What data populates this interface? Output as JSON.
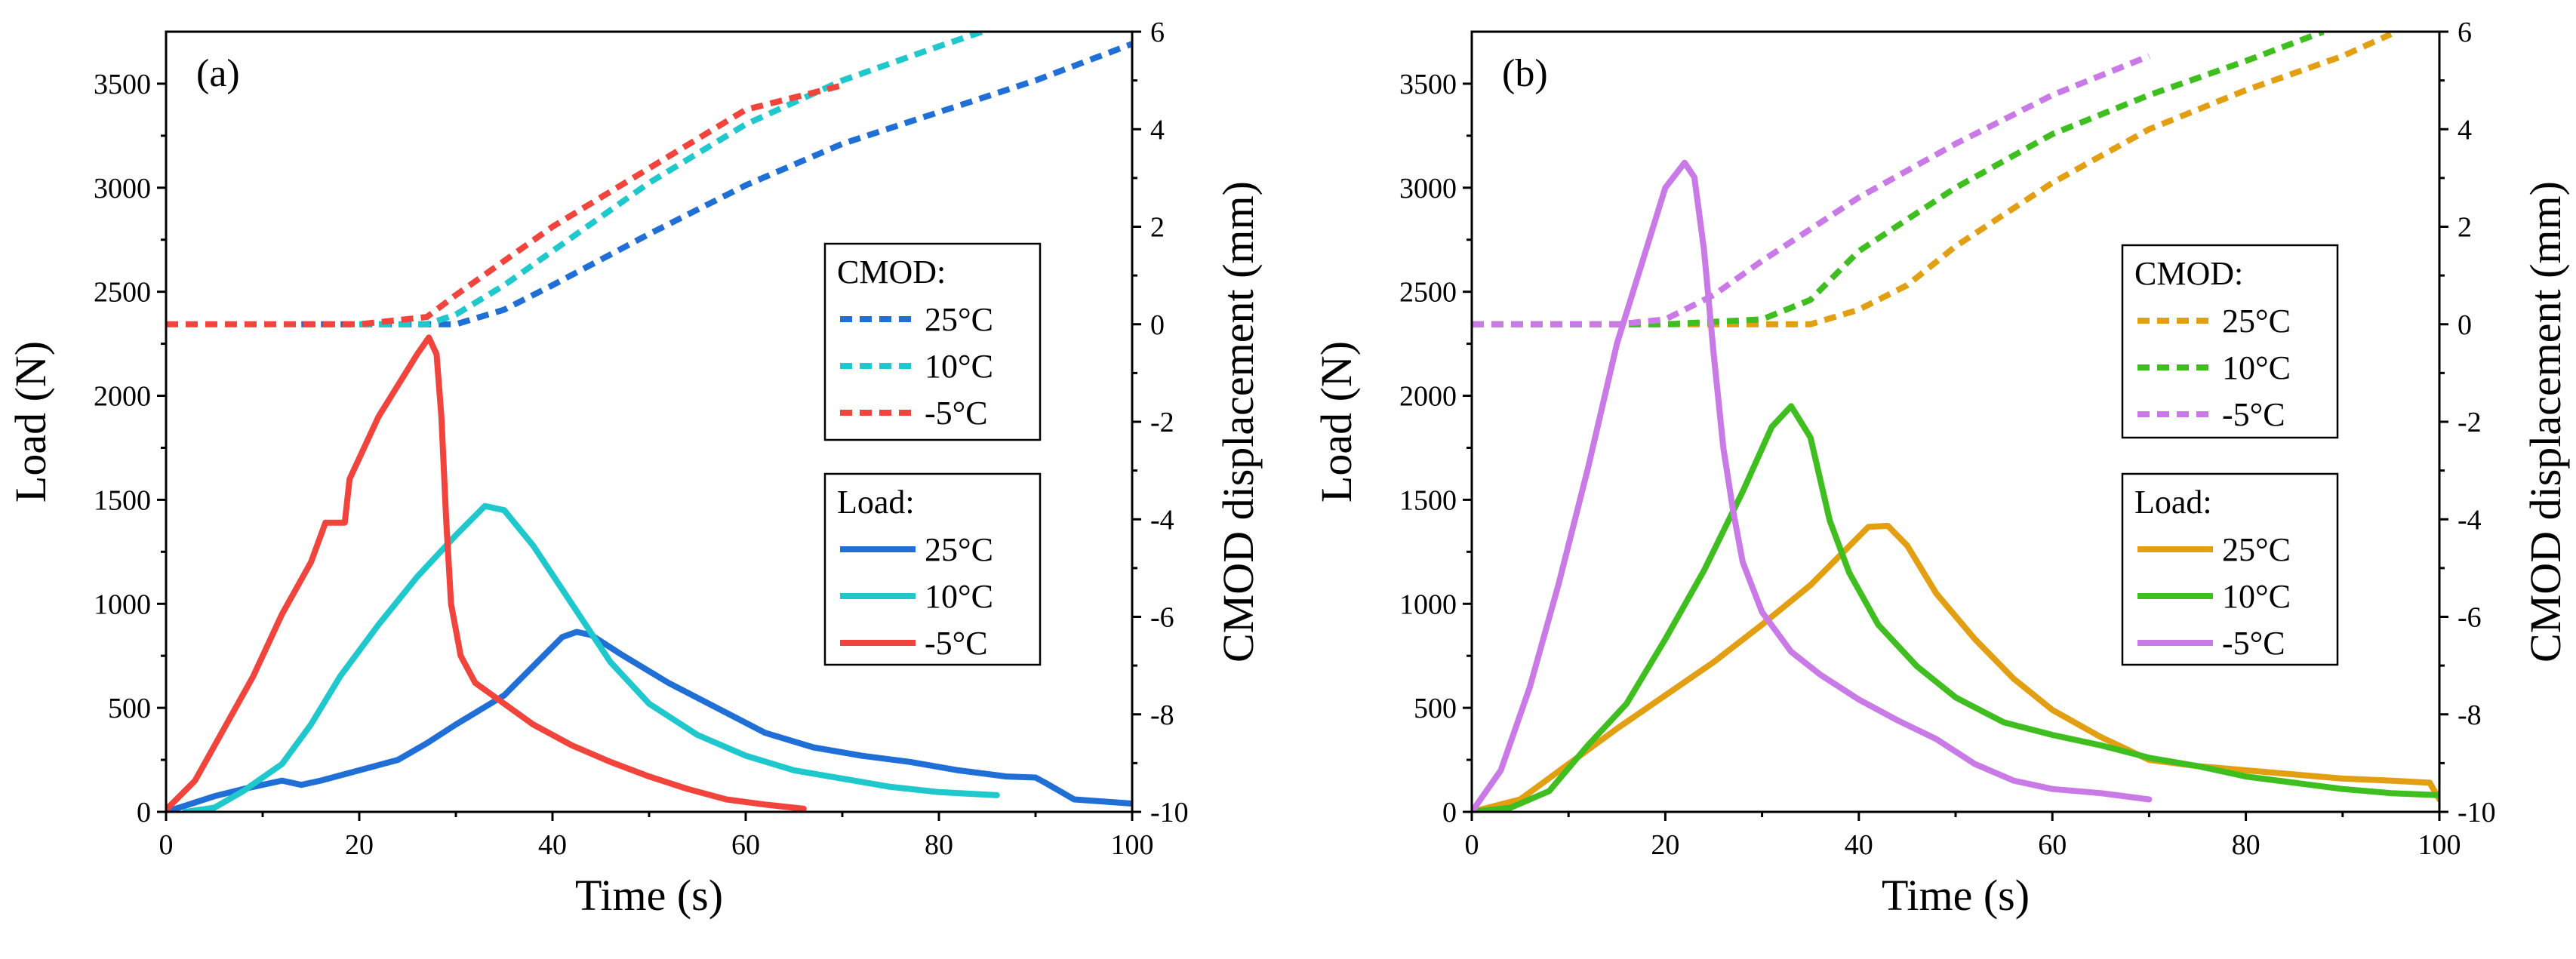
{
  "chart_data": [
    {
      "type": "line",
      "panel_label": "(a)",
      "xlabel": "Time (s)",
      "ylabel_left": "Load (N)",
      "ylabel_right": "CMOD displacement (mm)",
      "xlim": [
        0,
        100
      ],
      "ylim_left": [
        0,
        3750
      ],
      "ylim_right": [
        -10,
        6
      ],
      "x_ticks": [
        "0",
        "20",
        "40",
        "60",
        "80",
        "100"
      ],
      "y_left_ticks": [
        "0",
        "500",
        "1000",
        "1500",
        "2000",
        "2500",
        "3000",
        "3500"
      ],
      "y_right_ticks": [
        "6",
        "4",
        "2",
        "0",
        "-2",
        "-4",
        "-6",
        "-8",
        "-10"
      ],
      "legend_cmod": {
        "title": "CMOD:",
        "entries": [
          "25°C",
          "10°C",
          "-5°C"
        ]
      },
      "legend_load": {
        "title": "Load:",
        "entries": [
          "25°C",
          "10°C",
          "-5°C"
        ]
      },
      "series": [
        {
          "name": "CMOD 25°C",
          "axis": "right",
          "style": "dashed",
          "color": "#1f6fd6",
          "points": [
            [
              14,
              0
            ],
            [
              20,
              0
            ],
            [
              30,
              0
            ],
            [
              35,
              0.3
            ],
            [
              40,
              0.8
            ],
            [
              50,
              1.85
            ],
            [
              60,
              2.85
            ],
            [
              70,
              3.7
            ],
            [
              80,
              4.35
            ],
            [
              90,
              5.0
            ],
            [
              100,
              5.75
            ]
          ]
        },
        {
          "name": "CMOD 10°C",
          "axis": "right",
          "style": "dashed",
          "color": "#1ec8cc",
          "points": [
            [
              20,
              0
            ],
            [
              27,
              0
            ],
            [
              30,
              0.2
            ],
            [
              35,
              0.8
            ],
            [
              40,
              1.5
            ],
            [
              50,
              2.9
            ],
            [
              60,
              4.1
            ],
            [
              70,
              5.0
            ],
            [
              80,
              5.7
            ],
            [
              86,
              6.1
            ]
          ]
        },
        {
          "name": "CMOD -5°C",
          "axis": "right",
          "style": "dashed",
          "color": "#f0443c",
          "points": [
            [
              0,
              0
            ],
            [
              10,
              0
            ],
            [
              20,
              0
            ],
            [
              27,
              0.15
            ],
            [
              30,
              0.6
            ],
            [
              40,
              2.0
            ],
            [
              50,
              3.2
            ],
            [
              60,
              4.4
            ],
            [
              70,
              4.9
            ]
          ]
        },
        {
          "name": "Load 25°C",
          "axis": "left",
          "style": "solid",
          "color": "#1f6fd6",
          "points": [
            [
              0,
              0
            ],
            [
              5,
              75
            ],
            [
              8,
              110
            ],
            [
              12,
              150
            ],
            [
              14,
              130
            ],
            [
              16,
              150
            ],
            [
              20,
              200
            ],
            [
              24,
              250
            ],
            [
              27,
              330
            ],
            [
              30,
              420
            ],
            [
              35,
              560
            ],
            [
              38,
              700
            ],
            [
              41,
              840
            ],
            [
              42.5,
              865
            ],
            [
              44,
              850
            ],
            [
              47,
              760
            ],
            [
              52,
              620
            ],
            [
              57,
              500
            ],
            [
              62,
              380
            ],
            [
              67,
              310
            ],
            [
              72,
              270
            ],
            [
              77,
              240
            ],
            [
              82,
              200
            ],
            [
              87,
              170
            ],
            [
              90,
              165
            ],
            [
              91,
              140
            ],
            [
              94,
              60
            ],
            [
              100,
              40
            ]
          ]
        },
        {
          "name": "Load 10°C",
          "axis": "left",
          "style": "solid",
          "color": "#1ec8cc",
          "points": [
            [
              2,
              0
            ],
            [
              5,
              20
            ],
            [
              8,
              100
            ],
            [
              12,
              230
            ],
            [
              15,
              420
            ],
            [
              18,
              650
            ],
            [
              22,
              900
            ],
            [
              26,
              1130
            ],
            [
              30,
              1330
            ],
            [
              33,
              1470
            ],
            [
              35,
              1450
            ],
            [
              38,
              1280
            ],
            [
              42,
              1000
            ],
            [
              46,
              720
            ],
            [
              50,
              520
            ],
            [
              55,
              370
            ],
            [
              60,
              270
            ],
            [
              65,
              200
            ],
            [
              70,
              160
            ],
            [
              75,
              120
            ],
            [
              80,
              95
            ],
            [
              86,
              80
            ]
          ]
        },
        {
          "name": "Load -5°C",
          "axis": "left",
          "style": "solid",
          "color": "#f0443c",
          "points": [
            [
              0,
              10
            ],
            [
              3,
              150
            ],
            [
              6,
              400
            ],
            [
              9,
              650
            ],
            [
              12,
              950
            ],
            [
              15,
              1200
            ],
            [
              16.5,
              1390
            ],
            [
              18.5,
              1390
            ],
            [
              19,
              1600
            ],
            [
              20,
              1700
            ],
            [
              22,
              1900
            ],
            [
              24,
              2050
            ],
            [
              26,
              2200
            ],
            [
              27.2,
              2280
            ],
            [
              28,
              2200
            ],
            [
              28.5,
              1900
            ],
            [
              29,
              1400
            ],
            [
              29.5,
              1000
            ],
            [
              30.5,
              750
            ],
            [
              32,
              620
            ],
            [
              35,
              520
            ],
            [
              38,
              420
            ],
            [
              42,
              320
            ],
            [
              46,
              240
            ],
            [
              50,
              170
            ],
            [
              54,
              110
            ],
            [
              58,
              60
            ],
            [
              62,
              35
            ],
            [
              66,
              15
            ]
          ]
        }
      ]
    },
    {
      "type": "line",
      "panel_label": "(b)",
      "xlabel": "Time (s)",
      "ylabel_left": "Load (N)",
      "ylabel_right": "CMOD displacement (mm)",
      "xlim": [
        0,
        100
      ],
      "ylim_left": [
        0,
        3750
      ],
      "ylim_right": [
        -10,
        6
      ],
      "x_ticks": [
        "0",
        "20",
        "40",
        "60",
        "80",
        "100"
      ],
      "y_left_ticks": [
        "0",
        "500",
        "1000",
        "1500",
        "2000",
        "2500",
        "3000",
        "3500"
      ],
      "y_right_ticks": [
        "6",
        "4",
        "2",
        "0",
        "-2",
        "-4",
        "-6",
        "-8",
        "-10"
      ],
      "legend_cmod": {
        "title": "CMOD:",
        "entries": [
          "25°C",
          "10°C",
          "-5°C"
        ]
      },
      "legend_load": {
        "title": "Load:",
        "entries": [
          "25°C",
          "10°C",
          "-5°C"
        ]
      },
      "series": [
        {
          "name": "CMOD 25°C",
          "axis": "right",
          "style": "dashed",
          "color": "#e39f12",
          "points": [
            [
              0,
              0
            ],
            [
              20,
              0
            ],
            [
              35,
              0
            ],
            [
              40,
              0.3
            ],
            [
              45,
              0.8
            ],
            [
              50,
              1.6
            ],
            [
              60,
              2.9
            ],
            [
              70,
              4.0
            ],
            [
              80,
              4.8
            ],
            [
              90,
              5.5
            ],
            [
              95,
              5.95
            ]
          ]
        },
        {
          "name": "CMOD 10°C",
          "axis": "right",
          "style": "dashed",
          "color": "#3fbf1f",
          "points": [
            [
              0,
              0
            ],
            [
              20,
              0
            ],
            [
              30,
              0.1
            ],
            [
              35,
              0.5
            ],
            [
              40,
              1.5
            ],
            [
              50,
              2.8
            ],
            [
              60,
              3.9
            ],
            [
              70,
              4.7
            ],
            [
              80,
              5.4
            ],
            [
              88,
              6.0
            ]
          ]
        },
        {
          "name": "CMOD -5°C",
          "axis": "right",
          "style": "dashed",
          "color": "#c97ae6",
          "points": [
            [
              0,
              0
            ],
            [
              15,
              0
            ],
            [
              20,
              0.1
            ],
            [
              25,
              0.6
            ],
            [
              30,
              1.3
            ],
            [
              40,
              2.6
            ],
            [
              50,
              3.7
            ],
            [
              60,
              4.7
            ],
            [
              70,
              5.5
            ]
          ]
        },
        {
          "name": "Load 25°C",
          "axis": "left",
          "style": "solid",
          "color": "#e39f12",
          "points": [
            [
              0,
              0
            ],
            [
              5,
              60
            ],
            [
              10,
              230
            ],
            [
              15,
              400
            ],
            [
              20,
              560
            ],
            [
              25,
              720
            ],
            [
              30,
              900
            ],
            [
              35,
              1090
            ],
            [
              38,
              1230
            ],
            [
              41,
              1370
            ],
            [
              43,
              1375
            ],
            [
              45,
              1280
            ],
            [
              48,
              1050
            ],
            [
              52,
              830
            ],
            [
              56,
              640
            ],
            [
              60,
              490
            ],
            [
              65,
              360
            ],
            [
              70,
              250
            ],
            [
              75,
              220
            ],
            [
              80,
              200
            ],
            [
              85,
              180
            ],
            [
              90,
              160
            ],
            [
              95,
              150
            ],
            [
              99,
              140
            ],
            [
              100,
              60
            ]
          ]
        },
        {
          "name": "Load 10°C",
          "axis": "left",
          "style": "solid",
          "color": "#3fbf1f",
          "points": [
            [
              0,
              0
            ],
            [
              4,
              20
            ],
            [
              8,
              100
            ],
            [
              12,
              320
            ],
            [
              16,
              520
            ],
            [
              20,
              830
            ],
            [
              24,
              1160
            ],
            [
              28,
              1540
            ],
            [
              31,
              1850
            ],
            [
              33,
              1950
            ],
            [
              35,
              1800
            ],
            [
              37,
              1400
            ],
            [
              39,
              1150
            ],
            [
              42,
              900
            ],
            [
              46,
              700
            ],
            [
              50,
              550
            ],
            [
              55,
              430
            ],
            [
              60,
              370
            ],
            [
              65,
              320
            ],
            [
              70,
              260
            ],
            [
              75,
              220
            ],
            [
              80,
              170
            ],
            [
              85,
              140
            ],
            [
              90,
              110
            ],
            [
              95,
              90
            ],
            [
              100,
              80
            ]
          ]
        },
        {
          "name": "Load -5°C",
          "axis": "left",
          "style": "solid",
          "color": "#c97ae6",
          "points": [
            [
              0,
              0
            ],
            [
              3,
              200
            ],
            [
              6,
              600
            ],
            [
              9,
              1100
            ],
            [
              12,
              1650
            ],
            [
              15,
              2250
            ],
            [
              18,
              2700
            ],
            [
              20,
              3000
            ],
            [
              22,
              3120
            ],
            [
              23,
              3050
            ],
            [
              24,
              2700
            ],
            [
              25,
              2200
            ],
            [
              26,
              1750
            ],
            [
              27,
              1450
            ],
            [
              28,
              1200
            ],
            [
              30,
              960
            ],
            [
              33,
              770
            ],
            [
              36,
              660
            ],
            [
              40,
              540
            ],
            [
              44,
              440
            ],
            [
              48,
              350
            ],
            [
              52,
              230
            ],
            [
              56,
              150
            ],
            [
              60,
              110
            ],
            [
              65,
              90
            ],
            [
              70,
              60
            ]
          ]
        }
      ]
    }
  ]
}
